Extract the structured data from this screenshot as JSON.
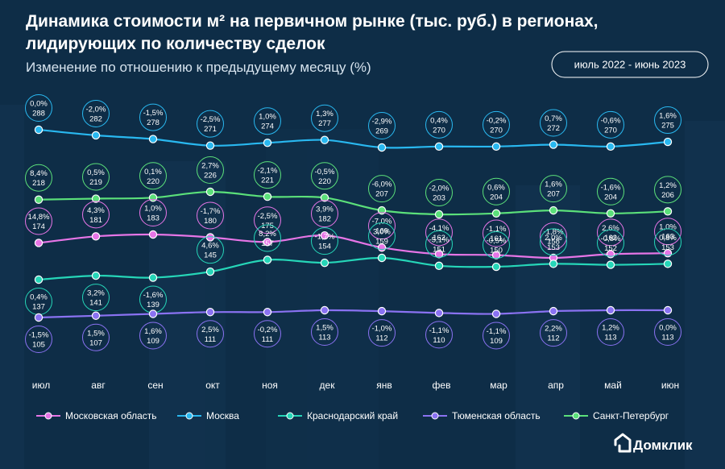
{
  "chart_data": {
    "type": "line",
    "title_lines": [
      "Динамика стоимости м² на первичном рынке (тыс. руб.) в регионах,",
      "лидирующих по количеству сделок"
    ],
    "subtitle": "Изменение по отношению к предыдущему месяцу (%)",
    "period": "июль 2022 - июнь 2023",
    "categories": [
      "июл",
      "авг",
      "сен",
      "окт",
      "ноя",
      "дек",
      "янв",
      "фев",
      "мар",
      "апр",
      "май",
      "июн"
    ],
    "legend_placement": "bottom",
    "grid": false,
    "series": [
      {
        "name": "Москва",
        "color": "#29b8f0",
        "values": [
          288,
          282,
          278,
          271,
          274,
          277,
          269,
          270,
          270,
          272,
          270,
          275
        ],
        "changes": [
          "0,0%",
          "-2,0%",
          "-1,5%",
          "-2,5%",
          "1,0%",
          "1,3%",
          "-2,9%",
          "0,4%",
          "-0,2%",
          "0,7%",
          "-0,6%",
          "1,6%"
        ]
      },
      {
        "name": "Санкт-Петербург",
        "color": "#5be07a",
        "values": [
          218,
          219,
          220,
          226,
          221,
          220,
          207,
          203,
          204,
          207,
          204,
          206
        ],
        "changes": [
          "8,4%",
          "0,5%",
          "0,1%",
          "2,7%",
          "-2,1%",
          "-0,5%",
          "-6,0%",
          "-2,0%",
          "0,6%",
          "1,6%",
          "-1,6%",
          "1,2%"
        ]
      },
      {
        "name": "Московская область",
        "color": "#e675e6",
        "values": [
          174,
          181,
          183,
          180,
          175,
          182,
          169,
          162,
          161,
          158,
          162,
          163
        ],
        "changes": [
          "14,8%",
          "4,3%",
          "1,0%",
          "-1,7%",
          "-2,5%",
          "3,9%",
          "-7,0%",
          "-4,1%",
          "-1,1%",
          "-1,8%",
          "2,6%",
          "1,0%"
        ]
      },
      {
        "name": "Краснодарский край",
        "color": "#26d6b8",
        "values": [
          137,
          141,
          139,
          145,
          157,
          154,
          159,
          151,
          150,
          153,
          152,
          153
        ],
        "changes": [
          "0,4%",
          "3,2%",
          "-1,6%",
          "4,6%",
          "8,2%",
          "-1,7%",
          "3,0%",
          "-5,1%",
          "-0,5%",
          "2,0%",
          "-0,8%",
          "0,8%"
        ]
      },
      {
        "name": "Тюменская область",
        "color": "#8a72f2",
        "values": [
          105,
          107,
          109,
          111,
          111,
          113,
          112,
          110,
          109,
          112,
          113,
          113
        ],
        "changes": [
          "-1,5%",
          "1,5%",
          "1,6%",
          "2,5%",
          "-0,2%",
          "1,5%",
          "-1,0%",
          "-1,1%",
          "-1,1%",
          "2,2%",
          "1,2%",
          "0,0%"
        ]
      }
    ],
    "legend": [
      {
        "name": "Московская область",
        "color": "#e675e6"
      },
      {
        "name": "Москва",
        "color": "#29b8f0"
      },
      {
        "name": "Краснодарский край",
        "color": "#26d6b8"
      },
      {
        "name": "Тюменская область",
        "color": "#8a72f2"
      },
      {
        "name": "Санкт-Петербург",
        "color": "#5be07a"
      }
    ],
    "brand": "Домклик"
  }
}
